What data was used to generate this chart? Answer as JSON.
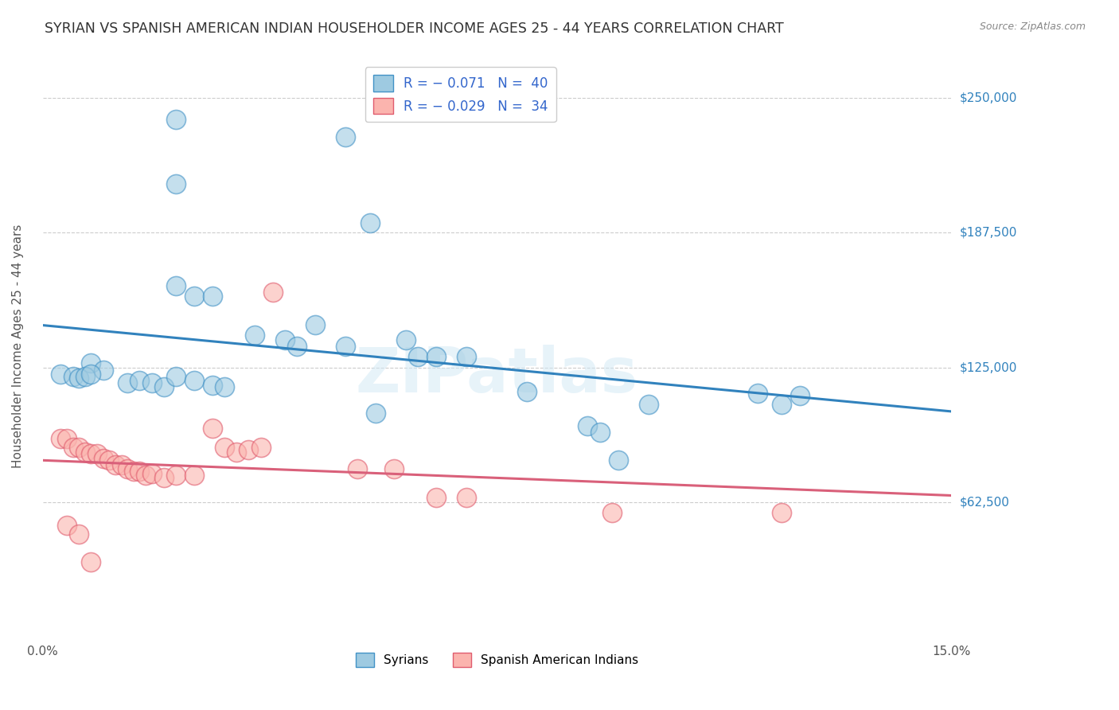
{
  "title": "SYRIAN VS SPANISH AMERICAN INDIAN HOUSEHOLDER INCOME AGES 25 - 44 YEARS CORRELATION CHART",
  "source": "Source: ZipAtlas.com",
  "ylabel": "Householder Income Ages 25 - 44 years",
  "xlim": [
    0.0,
    0.15
  ],
  "ylim": [
    0,
    270000
  ],
  "yticks": [
    62500,
    125000,
    187500,
    250000
  ],
  "ytick_labels": [
    "$62,500",
    "$125,000",
    "$187,500",
    "$250,000"
  ],
  "xticks": [
    0.0,
    0.025,
    0.05,
    0.075,
    0.1,
    0.125,
    0.15
  ],
  "watermark": "ZIPatlas",
  "syrians_color": "#9ecae1",
  "syrians_edge": "#4292c6",
  "spanish_color": "#fbb4ae",
  "spanish_edge": "#e05c6e",
  "line_color_syrians": "#3182bd",
  "line_color_spanish": "#d9607a",
  "background_color": "#ffffff",
  "grid_color": "#cccccc",
  "syrians_x": [
    0.022,
    0.05,
    0.022,
    0.022,
    0.025,
    0.028,
    0.054,
    0.008,
    0.01,
    0.014,
    0.016,
    0.018,
    0.02,
    0.022,
    0.025,
    0.028,
    0.03,
    0.035,
    0.04,
    0.042,
    0.045,
    0.05,
    0.055,
    0.06,
    0.062,
    0.065,
    0.07,
    0.08,
    0.09,
    0.092,
    0.095,
    0.1,
    0.003,
    0.005,
    0.006,
    0.007,
    0.008,
    0.118,
    0.122,
    0.125
  ],
  "syrians_y": [
    240000,
    232000,
    210000,
    163000,
    158000,
    158000,
    192000,
    127000,
    124000,
    118000,
    119000,
    118000,
    116000,
    121000,
    119000,
    117000,
    116000,
    140000,
    138000,
    135000,
    145000,
    135000,
    104000,
    138000,
    130000,
    130000,
    130000,
    114000,
    98000,
    95000,
    82000,
    108000,
    122000,
    121000,
    120000,
    121000,
    122000,
    113000,
    108000,
    112000
  ],
  "spanish_x": [
    0.003,
    0.004,
    0.005,
    0.006,
    0.007,
    0.008,
    0.009,
    0.01,
    0.011,
    0.012,
    0.013,
    0.014,
    0.015,
    0.016,
    0.017,
    0.018,
    0.02,
    0.022,
    0.025,
    0.028,
    0.03,
    0.032,
    0.034,
    0.036,
    0.038,
    0.052,
    0.058,
    0.065,
    0.07,
    0.094,
    0.122,
    0.004,
    0.006,
    0.008
  ],
  "spanish_y": [
    92000,
    92000,
    88000,
    88000,
    86000,
    85000,
    85000,
    83000,
    82000,
    80000,
    80000,
    78000,
    77000,
    77000,
    75000,
    76000,
    74000,
    75000,
    75000,
    97000,
    88000,
    86000,
    87000,
    88000,
    160000,
    78000,
    78000,
    65000,
    65000,
    58000,
    58000,
    52000,
    48000,
    35000
  ]
}
